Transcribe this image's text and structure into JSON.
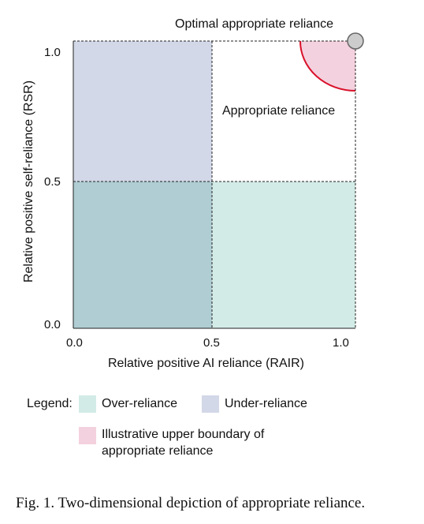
{
  "diagram": {
    "title_top": "Optimal appropriate reliance",
    "inner_label": "Appropriate reliance",
    "x_axis": {
      "label": "Relative positive AI reliance (RAIR)",
      "ticks": [
        "0.0",
        "0.5",
        "1.0"
      ]
    },
    "y_axis": {
      "label": "Relative positive self-reliance (RSR)",
      "ticks": [
        "0.0",
        "0.5",
        "1.0"
      ]
    },
    "colors": {
      "under_reliance": "#d3d8e8",
      "over_reliance": "#d3ebe6",
      "overlap": "#afcdd3",
      "boundary_fill": "#f4d1de",
      "boundary_stroke": "#d9112a",
      "optimal_point": "#cccccc"
    }
  },
  "legend": {
    "title": "Legend:",
    "items": [
      {
        "label": "Over-reliance",
        "color": "#d3ebe6"
      },
      {
        "label": "Under-reliance",
        "color": "#d3d8e8"
      },
      {
        "label": "Illustrative upper boundary of",
        "label2": "appropriate reliance",
        "color": "#f4d1de"
      }
    ]
  },
  "caption": "Fig. 1.  Two-dimensional depiction of appropriate reliance."
}
